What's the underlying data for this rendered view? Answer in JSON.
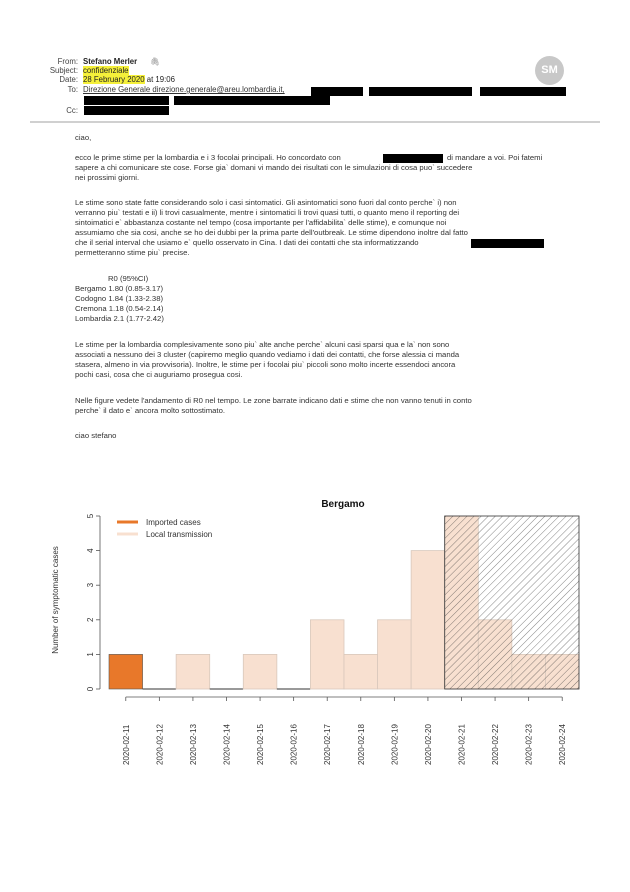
{
  "header": {
    "from_label": "From:",
    "from": "Stefano Merler",
    "from_icon": "paperclip-icon",
    "subject_label": "Subject:",
    "subject": "confidenziale",
    "date_label": "Date:",
    "date": "28 February 2020",
    "time": " at 19:06",
    "to_label": "To:",
    "to": "Direzione Generale direzione.generale@areu.lombardia.it,",
    "cc_label": "Cc:",
    "avatar": "SM"
  },
  "body": {
    "greeting": "ciao,",
    "p1": [
      "ecco le prime stime per la lombardia e i 3 focolai principali. Ho concordato con",
      "di mandare a voi. Poi fatemi",
      "sapere a chi comunicare ste cose. Forse gia` domani vi mando dei risultati con le simulazioni di cosa puo` succedere",
      "nei prossimi giorni."
    ],
    "p2": [
      "Le stime sono state fatte considerando solo i casi sintomatici. Gli asintomatici sono fuori dal conto perche` i) non",
      "verranno piu` testati e ii) li trovi casualmente, mentre i sintomatici li trovi quasi tutti, o quanto meno il reporting dei",
      "sintoimatici e` abbastanza costante nel tempo (cosa importante per l'affidabilita` delle stime), e comunque noi",
      "assumiamo che sia cosi, anche se ho dei dubbi per la prima parte dell'outbreak. Le stime dipendono inoltre dal fatto",
      "che il serial interval che usiamo e` quello osservato in Cina. I dati dei contatti che sta informatizzando",
      "permetteranno stime piu` precise."
    ],
    "table_header": "R0 (95%CI)",
    "table": [
      "Bergamo 1.80 (0.85-3.17)",
      "Codogno 1.84 (1.33-2.38)",
      "Cremona 1.18 (0.54-2.14)",
      "Lombardia 2.1 (1.77-2.42)"
    ],
    "p3": [
      "Le stime per la lombardia complesivamente sono piu` alte anche perche` alcuni casi sparsi qua e la` non sono",
      "associati a nessuno dei 3 cluster (capiremo meglio quando vediamo i dati dei contatti, che forse alessia ci manda",
      "stasera, almeno in via provvisoria). Inoltre, le stime per i focolai piu` piccoli sono molto incerte essendoci ancora",
      "pochi casi, cosa che ci auguriamo prosegua cosi."
    ],
    "p4": [
      "Nelle figure vedete l'andamento di R0 nel tempo. Le zone barrate indicano dati e stime che non vanno tenuti in conto",
      "perche` il dato e` ancora molto sottostimato."
    ],
    "signoff": "ciao stefano"
  },
  "chart_data": {
    "type": "bar",
    "title": "Bergamo",
    "xlabel": "",
    "ylabel": "Number of symptomatic cases",
    "ylim": [
      0,
      5
    ],
    "yticks": [
      "0",
      "1",
      "2",
      "3",
      "4",
      "5"
    ],
    "categories": [
      "2020-02-11",
      "2020-02-12",
      "2020-02-13",
      "2020-02-14",
      "2020-02-15",
      "2020-02-16",
      "2020-02-17",
      "2020-02-18",
      "2020-02-19",
      "2020-02-20",
      "2020-02-21",
      "2020-02-22",
      "2020-02-23",
      "2020-02-24"
    ],
    "series": [
      {
        "name": "Imported cases",
        "color": "#e8782a",
        "values": [
          1,
          0,
          0,
          0,
          0,
          0,
          0,
          0,
          0,
          0,
          0,
          0,
          0,
          0
        ]
      },
      {
        "name": "Local transmission",
        "color": "#f8e0d0",
        "values": [
          0,
          0,
          1,
          0,
          1,
          0,
          2,
          1,
          2,
          4,
          5,
          2,
          1,
          1
        ]
      }
    ],
    "hatched_from": "2020-02-21",
    "hatched_to": "2020-02-24",
    "legend": "top-left"
  }
}
